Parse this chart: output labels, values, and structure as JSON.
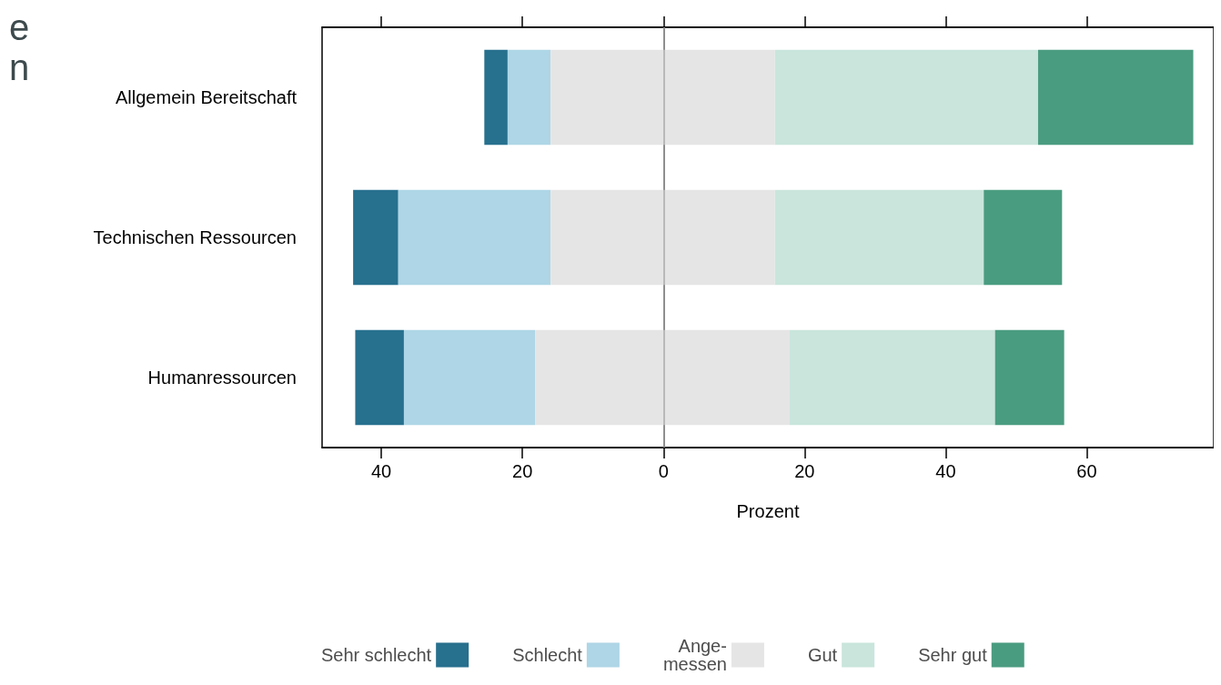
{
  "chart_data": {
    "type": "bar",
    "orientation": "horizontal",
    "annotations": [
      "e",
      "n"
    ],
    "xlabel": "Prozent",
    "categories": [
      "Allgemein Bereitschaft",
      "Technischen Ressourcen",
      "Humanressourcen"
    ],
    "series": [
      {
        "name": "Sehr schlecht",
        "color": "#27708e",
        "base": [
          -25.4,
          -44.0,
          -43.7
        ],
        "values": [
          3.3,
          6.4,
          6.9
        ]
      },
      {
        "name": "Schlecht",
        "color": "#aed6e6",
        "base": [
          -22.1,
          -37.6,
          -36.8
        ],
        "values": [
          6.1,
          21.6,
          18.6
        ]
      },
      {
        "name": "Ange-\nmessen",
        "color": "#e5e5e5",
        "base": [
          -16.0,
          -16.0,
          -18.2
        ],
        "values": [
          31.8,
          31.8,
          36.1
        ]
      },
      {
        "name": "Gut",
        "color": "#c9e5dc",
        "base": [
          15.8,
          15.8,
          17.9
        ],
        "values": [
          37.3,
          29.6,
          29.1
        ]
      },
      {
        "name": "Sehr gut",
        "color": "#4a9c80",
        "base": [
          53.1,
          45.4,
          47.0
        ],
        "values": [
          22.0,
          11.1,
          9.8
        ]
      }
    ],
    "xlim": [
      -48.4,
      78
    ],
    "xticks": [
      {
        "value": -40,
        "label": "40"
      },
      {
        "value": -20,
        "label": "20"
      },
      0,
      20,
      40,
      60
    ],
    "ref_lines": [
      {
        "axis": "x",
        "value": 0,
        "color": "#aaaaaa"
      }
    ],
    "grid": false,
    "legend": "bottom"
  }
}
